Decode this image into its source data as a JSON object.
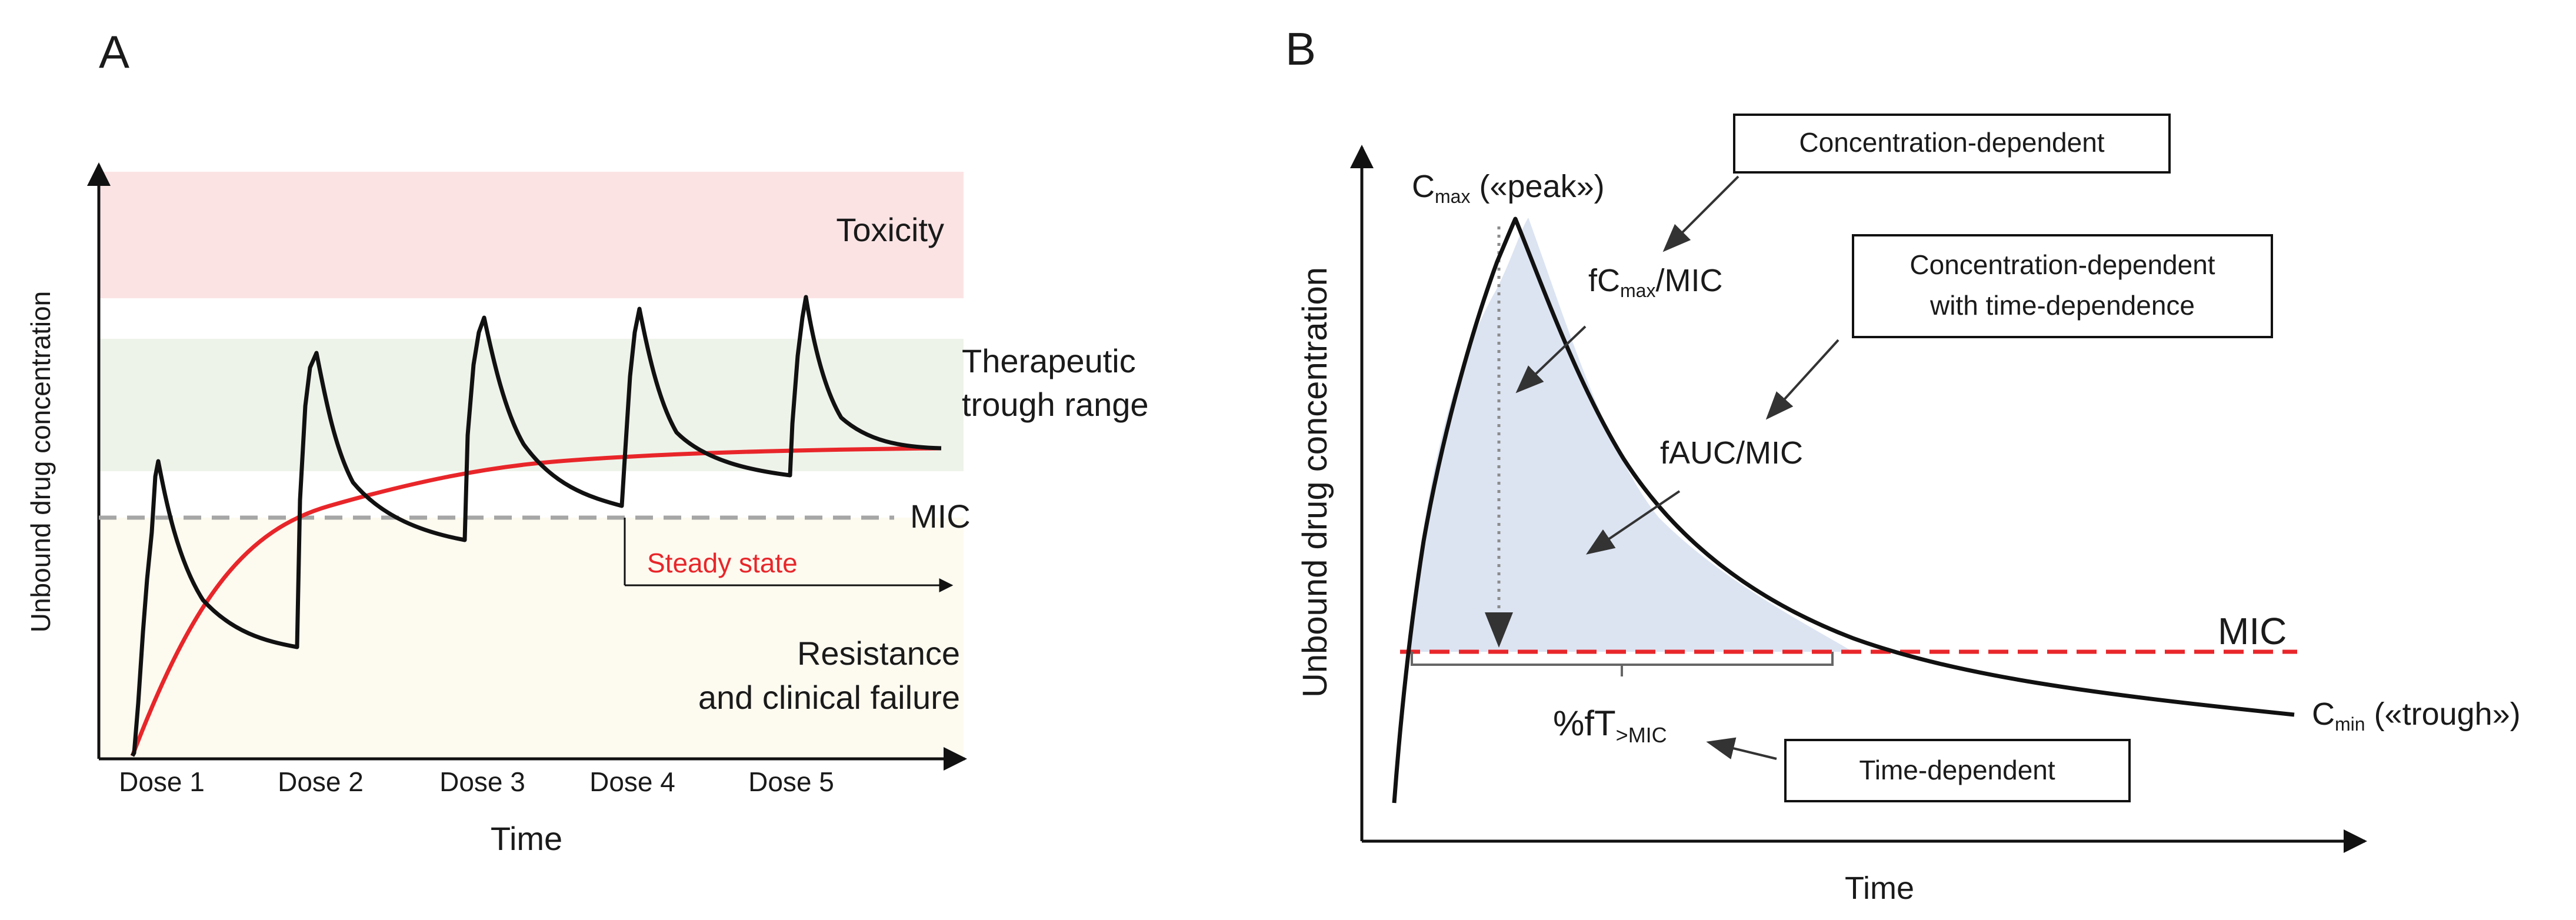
{
  "panel_a": {
    "letter": "A",
    "y_axis_label": "Unbound drug concentration",
    "x_axis_label": "Time",
    "zones": {
      "toxicity": "Toxicity",
      "therapeutic_line1": "Therapeutic",
      "therapeutic_line2": "trough range",
      "resistance_line1": "Resistance",
      "resistance_line2": "and clinical failure"
    },
    "mic_label": "MIC",
    "steady_state_label": "Steady state",
    "dose_labels": [
      "Dose 1",
      "Dose 2",
      "Dose 3",
      "Dose 4",
      "Dose 5"
    ],
    "colors": {
      "toxicity_zone": "#fbe3e4",
      "therapeutic_zone": "#eef3ea",
      "resistance_zone": "#fdfaf0",
      "steady_state_curve": "#e8262a",
      "mic_line": "#a6a6a6",
      "concentration_curve": "#111111"
    }
  },
  "panel_b": {
    "letter": "B",
    "y_axis_label": "Unbound drug concentration",
    "x_axis_label": "Time",
    "cmax": {
      "main": "C",
      "sub": "max",
      "rest": " («peak»)"
    },
    "cmin": {
      "main": "C",
      "sub": "min",
      "rest": " («trough»)"
    },
    "fcmax_mic": {
      "pre": "fC",
      "sub": "max",
      "post": "/MIC"
    },
    "fauc_mic": "fAUC/MIC",
    "ft_mic": {
      "pre": "%fT",
      "sub": ">MIC"
    },
    "mic_label": "MIC",
    "boxes": {
      "concentration_dependent": "Concentration-dependent",
      "conc_time_line1": "Concentration-dependent",
      "conc_time_line2": "with time-dependence",
      "time_dependent": "Time-dependent"
    },
    "colors": {
      "auc_fill": "#dce4f2",
      "mic_line": "#e8262a",
      "curve": "#111111",
      "peak_dotted_line": "#8c8c8c"
    }
  }
}
